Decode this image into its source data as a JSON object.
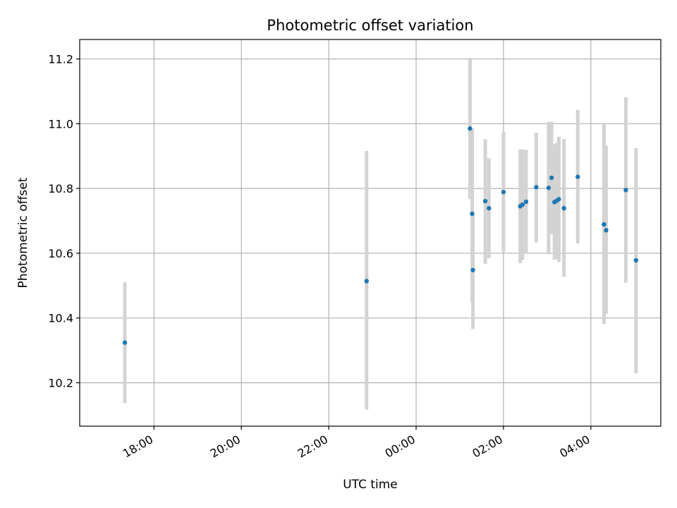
{
  "chart_data": {
    "type": "scatter",
    "title": "Photometric offset variation",
    "xlabel": "UTC time",
    "ylabel": "Photometric offset",
    "x_range_hours": [
      16.3,
      29.6
    ],
    "ylim": [
      10.066,
      11.26
    ],
    "x_ticks": [
      {
        "hour": 18,
        "label": "18:00"
      },
      {
        "hour": 20,
        "label": "20:00"
      },
      {
        "hour": 22,
        "label": "22:00"
      },
      {
        "hour": 24,
        "label": "00:00"
      },
      {
        "hour": 26,
        "label": "02:00"
      },
      {
        "hour": 28,
        "label": "04:00"
      }
    ],
    "y_ticks": [
      {
        "value": 10.2,
        "label": "10.2"
      },
      {
        "value": 10.4,
        "label": "10.4"
      },
      {
        "value": 10.6,
        "label": "10.6"
      },
      {
        "value": 10.8,
        "label": "10.8"
      },
      {
        "value": 11.0,
        "label": "11.0"
      },
      {
        "value": 11.2,
        "label": "11.2"
      }
    ],
    "grid": true,
    "marker_color": "#1f77b4",
    "errorbar_color": "#d3d3d3",
    "points": [
      {
        "time": "17:20",
        "offset": 10.324,
        "err_low": 10.137,
        "err_high": 10.51
      },
      {
        "time": "22:52",
        "offset": 10.514,
        "err_low": 10.117,
        "err_high": 10.916
      },
      {
        "time": "01:14",
        "offset": 10.985,
        "err_low": 10.767,
        "err_high": 11.203
      },
      {
        "time": "01:17",
        "offset": 10.722,
        "err_low": 10.449,
        "err_high": 10.985
      },
      {
        "time": "01:18",
        "offset": 10.548,
        "err_low": 10.366,
        "err_high": 10.72
      },
      {
        "time": "01:35",
        "offset": 10.761,
        "err_low": 10.567,
        "err_high": 10.952
      },
      {
        "time": "01:40",
        "offset": 10.739,
        "err_low": 10.585,
        "err_high": 10.893
      },
      {
        "time": "02:00",
        "offset": 10.789,
        "err_low": 10.603,
        "err_high": 10.975
      },
      {
        "time": "02:23",
        "offset": 10.745,
        "err_low": 10.569,
        "err_high": 10.92
      },
      {
        "time": "02:26",
        "offset": 10.75,
        "err_low": 10.579,
        "err_high": 10.921
      },
      {
        "time": "02:31",
        "offset": 10.759,
        "err_low": 10.599,
        "err_high": 10.919
      },
      {
        "time": "02:45",
        "offset": 10.804,
        "err_low": 10.633,
        "err_high": 10.972
      },
      {
        "time": "03:02",
        "offset": 10.802,
        "err_low": 10.597,
        "err_high": 11.006
      },
      {
        "time": "03:06",
        "offset": 10.833,
        "err_low": 10.659,
        "err_high": 11.006
      },
      {
        "time": "03:10",
        "offset": 10.758,
        "err_low": 10.58,
        "err_high": 10.936
      },
      {
        "time": "03:13",
        "offset": 10.762,
        "err_low": 10.583,
        "err_high": 10.941
      },
      {
        "time": "03:16",
        "offset": 10.767,
        "err_low": 10.573,
        "err_high": 10.96
      },
      {
        "time": "03:23",
        "offset": 10.739,
        "err_low": 10.527,
        "err_high": 10.953
      },
      {
        "time": "03:42",
        "offset": 10.836,
        "err_low": 10.63,
        "err_high": 11.043
      },
      {
        "time": "04:18",
        "offset": 10.689,
        "err_low": 10.381,
        "err_high": 11.0
      },
      {
        "time": "04:21",
        "offset": 10.671,
        "err_low": 10.413,
        "err_high": 10.932
      },
      {
        "time": "04:48",
        "offset": 10.795,
        "err_low": 10.509,
        "err_high": 11.081
      },
      {
        "time": "05:02",
        "offset": 10.578,
        "err_low": 10.229,
        "err_high": 10.925
      }
    ]
  }
}
